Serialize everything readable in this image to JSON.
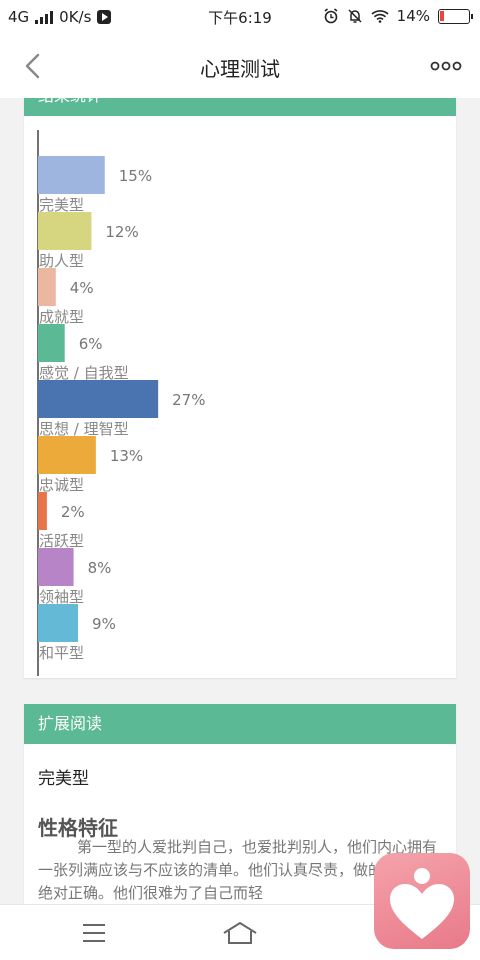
{
  "status_bar": {
    "network": "4G",
    "speed": "0K/s",
    "time": "下午6:19",
    "battery": "14%"
  },
  "nav": {
    "title": "心理测试",
    "back_icon": "chevron-left-icon",
    "more_icon": "more-dots-icon"
  },
  "result_card": {
    "header": "结果统计"
  },
  "chart_data": {
    "type": "bar",
    "orientation": "horizontal",
    "categories": [
      "完美型",
      "助人型",
      "成就型",
      "感觉 / 自我型",
      "思想 / 理智型",
      "忠诚型",
      "活跃型",
      "领袖型",
      "和平型"
    ],
    "values": [
      15,
      12,
      4,
      6,
      27,
      13,
      2,
      8,
      9
    ],
    "value_labels": [
      "15%",
      "12%",
      "4%",
      "6%",
      "27%",
      "13%",
      "2%",
      "8%",
      "9%"
    ],
    "colors": [
      "#9db5df",
      "#d5d67f",
      "#ebb7a1",
      "#5bb995",
      "#4a74b0",
      "#ebaa3a",
      "#e8744a",
      "#b785c7",
      "#64b9d6"
    ],
    "unit": "%",
    "grid": false
  },
  "reading_card": {
    "header": "扩展阅读",
    "type_name": "完美型",
    "heading": "性格特征",
    "body": "第一型的人爱批判自己，也爱批判别人，他们内心拥有一张列满应该与不应该的清单。他们认真尽责，做的每件事都绝对正确。他们很难为了自己而轻"
  },
  "bottom_bar": {
    "menu_icon": "menu-icon",
    "home_icon": "home-icon"
  },
  "floating_app": {
    "icon": "heart-person-icon"
  },
  "colors": {
    "accent": "#5bb995",
    "background": "#f2f2f2"
  }
}
